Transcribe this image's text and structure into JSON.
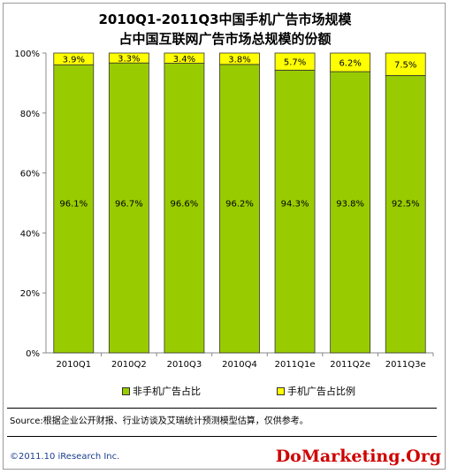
{
  "chart_data": {
    "type": "bar",
    "stacked": true,
    "percent": true,
    "title": "2010Q1-2011Q3中国手机广告市场规模",
    "subtitle": "占中国互联网广告市场总规模的份额",
    "categories": [
      "2010Q1",
      "2010Q2",
      "2010Q3",
      "2010Q4",
      "2011Q1e",
      "2011Q2e",
      "2011Q3e"
    ],
    "series": [
      {
        "name": "非手机广告占比",
        "color": "#99cc00",
        "values": [
          96.1,
          96.7,
          96.6,
          96.2,
          94.3,
          93.8,
          92.5
        ],
        "labels": [
          "96.1%",
          "96.7%",
          "96.6%",
          "96.2%",
          "94.3%",
          "93.8%",
          "92.5%"
        ]
      },
      {
        "name": "手机广告占比例",
        "color": "#ffff00",
        "values": [
          3.9,
          3.3,
          3.4,
          3.8,
          5.7,
          6.2,
          7.5
        ],
        "labels": [
          "3.9%",
          "3.3%",
          "3.4%",
          "3.8%",
          "5.7%",
          "6.2%",
          "7.5%"
        ]
      }
    ],
    "yticks": [
      "0%",
      "20%",
      "40%",
      "60%",
      "80%",
      "100%"
    ],
    "ylim": [
      0,
      100
    ],
    "grid": false,
    "legend_position": "bottom"
  },
  "footer": {
    "source": "Source:根据企业公开财报、行业访谈及艾瑞统计预测模型估算，仅供参考。",
    "copyright": "©2011.10 iResearch Inc.",
    "watermark": "DoMarketing.Org"
  }
}
